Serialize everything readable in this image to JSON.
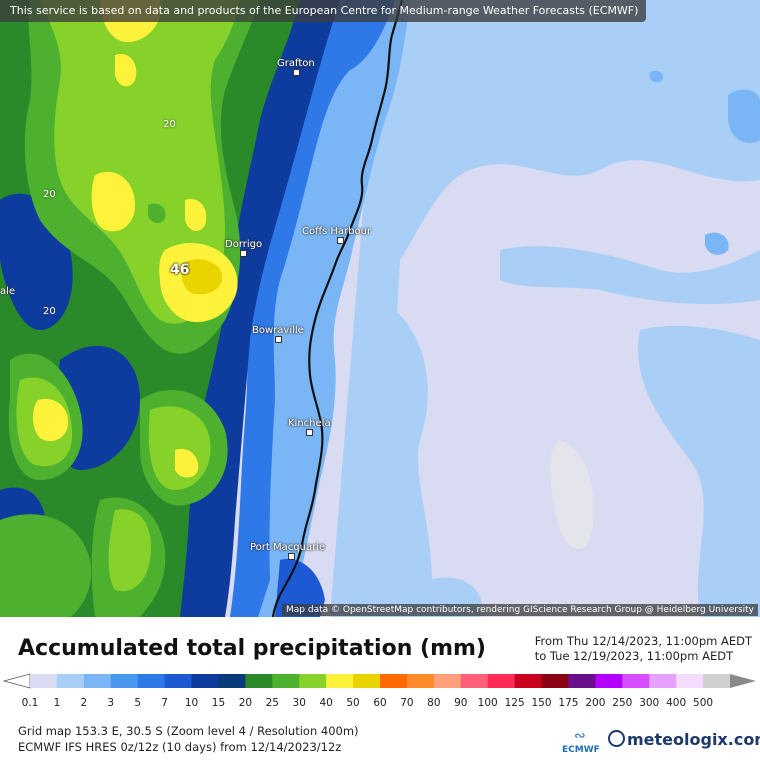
{
  "notice": "This service is based on data and products of the European Centre for Medium-range Weather Forecasts (ECMWF)",
  "towns": [
    {
      "name": "Grafton"
    },
    {
      "name": "Coffs Harbour"
    },
    {
      "name": "Dorrigo"
    },
    {
      "name": "Bowraville"
    },
    {
      "name": "Kinchela"
    },
    {
      "name": "Port Macquarie"
    }
  ],
  "edge_label": "ale",
  "contour_labels": [
    "20",
    "20",
    "20"
  ],
  "max_value": "46",
  "attribution": "Map data © OpenStreetMap contributors, rendering GIScience Research Group @ Heidelberg University",
  "title": "Accumulated total precipitation (mm)",
  "period": {
    "from": "From Thu 12/14/2023, 11:00pm AEDT",
    "to": "to Tue 12/19/2023, 11:00pm AEDT"
  },
  "colorbar": {
    "ticks": [
      "0.1",
      "1",
      "2",
      "3",
      "5",
      "7",
      "10",
      "15",
      "20",
      "25",
      "30",
      "40",
      "50",
      "60",
      "70",
      "80",
      "90",
      "100",
      "125",
      "150",
      "175",
      "200",
      "250",
      "300",
      "400",
      "500"
    ],
    "colors": [
      "#d8dbf2",
      "#a9cff7",
      "#7ab6f5",
      "#4a97ef",
      "#2f78e8",
      "#1e59d4",
      "#0e3c9e",
      "#0b3a7a",
      "#2a8a2a",
      "#4db12f",
      "#86d12a",
      "#fff23a",
      "#e9d400",
      "#ff6a00",
      "#ff8a2a",
      "#ffa07a",
      "#ff5f7a",
      "#ff2a55",
      "#c8001e",
      "#8c0014",
      "#6a0f8c",
      "#b400ff",
      "#d64cff",
      "#e8a0ff",
      "#f4dcff",
      "#d0d0d0"
    ]
  },
  "info": {
    "line1": "Grid map 153.3 E, 30.5 S (Zoom level 4 / Resolution 400m)",
    "line2": "ECMWF IFS HRES 0z/12z (10 days) from 12/14/2023/12z"
  },
  "logos": {
    "ecmwf": "ECMWF",
    "meteologix": "meteologix.com"
  }
}
